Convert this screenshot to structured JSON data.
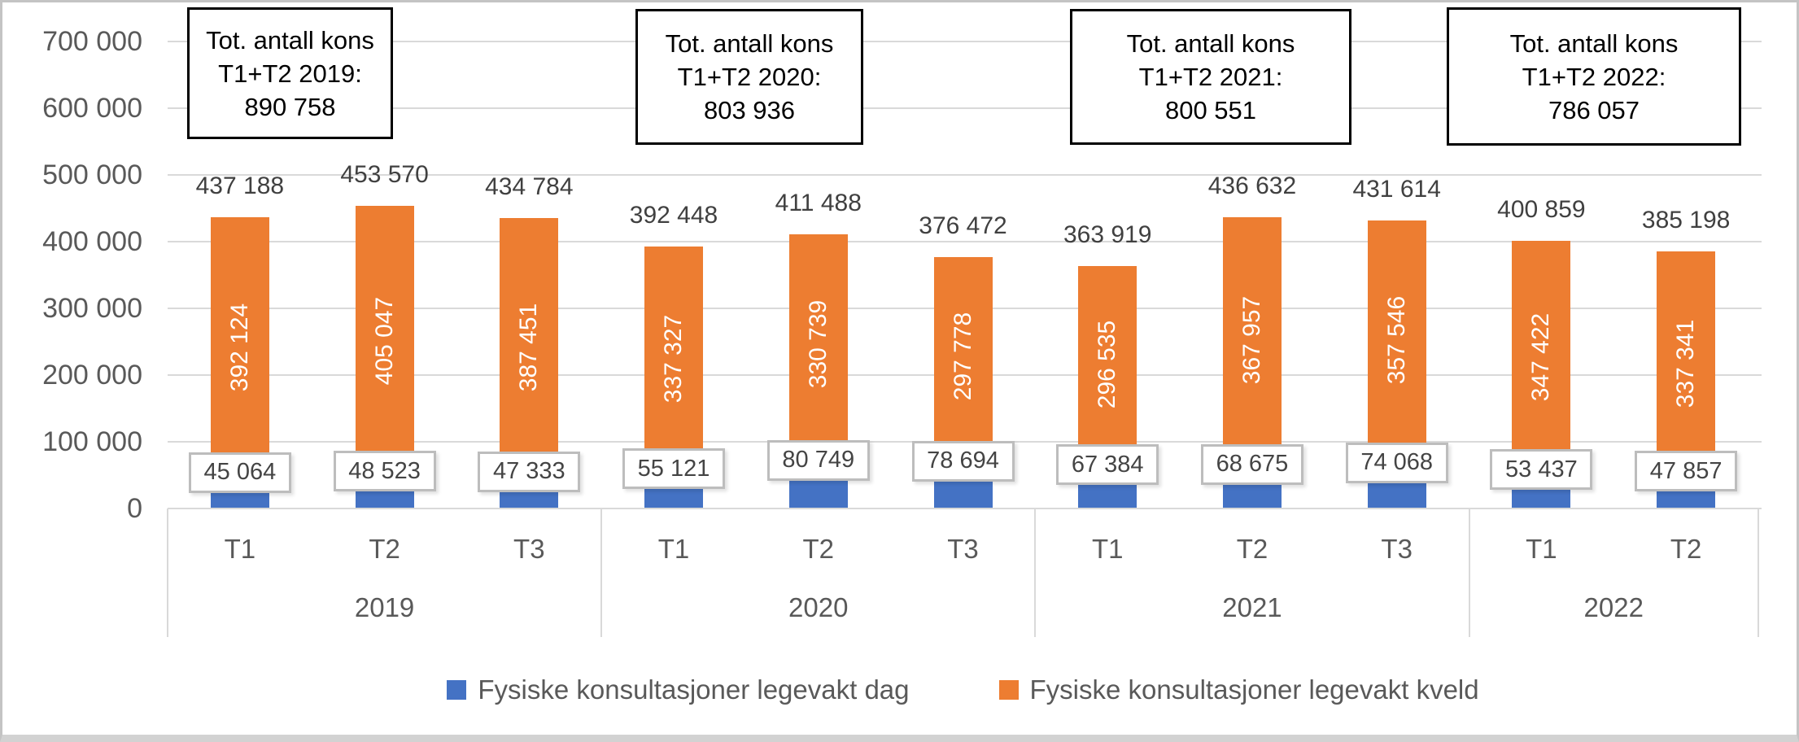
{
  "y_axis": {
    "min": 0,
    "max": 700000,
    "step": 100000,
    "tick_labels": [
      "0",
      "100 000",
      "200 000",
      "300 000",
      "400 000",
      "500 000",
      "600 000",
      "700 000"
    ]
  },
  "legend": {
    "items": [
      {
        "label": "Fysiske konsultasjoner legevakt dag",
        "color": "#4472C4"
      },
      {
        "label": "Fysiske konsultasjoner legevakt kveld",
        "color": "#ED7D31"
      }
    ]
  },
  "annotations": [
    {
      "lines": [
        "Tot. antall kons",
        "T1+T2 2019:",
        "890 758"
      ]
    },
    {
      "lines": [
        "Tot. antall kons",
        "T1+T2 2020:",
        "803 936"
      ]
    },
    {
      "lines": [
        "Tot. antall kons",
        "T1+T2 2021:",
        "800 551"
      ]
    },
    {
      "lines": [
        "Tot. antall kons",
        "T1+T2 2022:",
        "786 057"
      ]
    }
  ],
  "chart_data": {
    "type": "bar",
    "stacked": true,
    "grid": true,
    "legend_position": "bottom",
    "ylim": [
      0,
      700000
    ],
    "categories": [
      "T1",
      "T2",
      "T3",
      "T1",
      "T2",
      "T3",
      "T1",
      "T2",
      "T3",
      "T1",
      "T2"
    ],
    "year_groups": [
      {
        "year": "2019",
        "count": 3
      },
      {
        "year": "2020",
        "count": 3
      },
      {
        "year": "2021",
        "count": 3
      },
      {
        "year": "2022",
        "count": 2
      }
    ],
    "series": [
      {
        "name": "Fysiske konsultasjoner legevakt dag",
        "color": "#4472C4",
        "values": [
          45064,
          48523,
          47333,
          55121,
          80749,
          78694,
          67384,
          68675,
          74068,
          53437,
          47857
        ],
        "value_labels": [
          "45 064",
          "48 523",
          "47 333",
          "55 121",
          "80 749",
          "78 694",
          "67 384",
          "68 675",
          "74 068",
          "53 437",
          "47 857"
        ]
      },
      {
        "name": "Fysiske konsultasjoner legevakt kveld",
        "color": "#ED7D31",
        "values": [
          392124,
          405047,
          387451,
          337327,
          330739,
          297778,
          296535,
          367957,
          357546,
          347422,
          337341
        ],
        "value_labels": [
          "392 124",
          "405 047",
          "387 451",
          "337 327",
          "330 739",
          "297 778",
          "296 535",
          "367 957",
          "357 546",
          "347 422",
          "337 341"
        ]
      }
    ],
    "totals": [
      437188,
      453570,
      434784,
      392448,
      411488,
      376472,
      363919,
      436632,
      431614,
      400859,
      385198
    ],
    "total_labels": [
      "437 188",
      "453 570",
      "434 784",
      "392 448",
      "411 488",
      "376 472",
      "363 919",
      "436 632",
      "431 614",
      "400 859",
      "385 198"
    ]
  }
}
